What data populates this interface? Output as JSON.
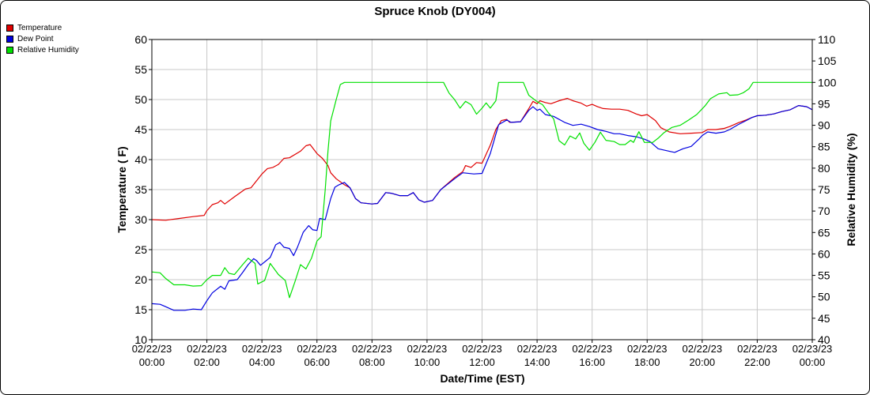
{
  "chart_data": {
    "type": "line",
    "title": "Spruce Knob (DY004)",
    "xlabel": "Date/Time (EST)",
    "ylabel_left": "Temperature ( F)",
    "ylabel_right": "Relative Humidity (%)",
    "ylim_left": [
      10,
      60
    ],
    "ylim_right": [
      40,
      110
    ],
    "left_ticks": [
      10,
      15,
      20,
      25,
      30,
      35,
      40,
      45,
      50,
      55,
      60
    ],
    "right_ticks": [
      40,
      45,
      50,
      55,
      60,
      65,
      70,
      75,
      80,
      85,
      90,
      95,
      100,
      105,
      110
    ],
    "xlim": [
      0,
      24
    ],
    "x_ticks": [
      {
        "h": 0,
        "date": "02/22/23",
        "time": "00:00"
      },
      {
        "h": 2,
        "date": "02/22/23",
        "time": "02:00"
      },
      {
        "h": 4,
        "date": "02/22/23",
        "time": "04:00"
      },
      {
        "h": 6,
        "date": "02/22/23",
        "time": "06:00"
      },
      {
        "h": 8,
        "date": "02/22/23",
        "time": "08:00"
      },
      {
        "h": 10,
        "date": "02/22/23",
        "time": "10:00"
      },
      {
        "h": 12,
        "date": "02/22/23",
        "time": "12:00"
      },
      {
        "h": 14,
        "date": "02/22/23",
        "time": "14:00"
      },
      {
        "h": 16,
        "date": "02/22/23",
        "time": "16:00"
      },
      {
        "h": 18,
        "date": "02/22/23",
        "time": "18:00"
      },
      {
        "h": 20,
        "date": "02/22/23",
        "time": "20:00"
      },
      {
        "h": 22,
        "date": "02/22/23",
        "time": "22:00"
      },
      {
        "h": 24,
        "date": "02/23/23",
        "time": "00:00"
      }
    ],
    "grid": true,
    "legend_position": "top-left",
    "series": [
      {
        "name": "Temperature",
        "axis": "left",
        "color": "#e00000",
        "points": [
          [
            0,
            30
          ],
          [
            0.5,
            29.9
          ],
          [
            1,
            30.2
          ],
          [
            1.5,
            30.5
          ],
          [
            1.9,
            30.7
          ],
          [
            2,
            31.5
          ],
          [
            2.2,
            32.5
          ],
          [
            2.4,
            32.8
          ],
          [
            2.5,
            33.2
          ],
          [
            2.65,
            32.6
          ],
          [
            3,
            33.8
          ],
          [
            3.4,
            35.1
          ],
          [
            3.6,
            35.3
          ],
          [
            4,
            37.6
          ],
          [
            4.2,
            38.5
          ],
          [
            4.4,
            38.7
          ],
          [
            4.6,
            39.2
          ],
          [
            4.8,
            40.2
          ],
          [
            5,
            40.3
          ],
          [
            5.4,
            41.4
          ],
          [
            5.6,
            42.3
          ],
          [
            5.75,
            42.5
          ],
          [
            6,
            41
          ],
          [
            6.2,
            40.2
          ],
          [
            6.4,
            39
          ],
          [
            6.5,
            37.8
          ],
          [
            6.7,
            36.8
          ],
          [
            7,
            35.8
          ],
          [
            7.2,
            35.3
          ],
          [
            7.4,
            33.5
          ],
          [
            7.6,
            32.8
          ],
          [
            8,
            32.6
          ],
          [
            8.2,
            32.7
          ],
          [
            8.5,
            34.5
          ],
          [
            8.7,
            34.4
          ],
          [
            9,
            34
          ],
          [
            9.3,
            34
          ],
          [
            9.5,
            34.5
          ],
          [
            9.7,
            33.3
          ],
          [
            9.9,
            32.9
          ],
          [
            10.2,
            33.2
          ],
          [
            10.5,
            35
          ],
          [
            11,
            37
          ],
          [
            11.3,
            38
          ],
          [
            11.4,
            39
          ],
          [
            11.6,
            38.7
          ],
          [
            11.8,
            39.5
          ],
          [
            12,
            39.4
          ],
          [
            12.3,
            42.4
          ],
          [
            12.5,
            45
          ],
          [
            12.7,
            46.5
          ],
          [
            12.9,
            46.7
          ],
          [
            13,
            46.2
          ],
          [
            13.4,
            46.3
          ],
          [
            13.7,
            48.5
          ],
          [
            13.85,
            49.7
          ],
          [
            14,
            49.3
          ],
          [
            14.1,
            49.8
          ],
          [
            14.3,
            49.5
          ],
          [
            14.5,
            49.3
          ],
          [
            14.8,
            49.8
          ],
          [
            15.1,
            50.2
          ],
          [
            15.3,
            49.8
          ],
          [
            15.6,
            49.4
          ],
          [
            15.8,
            48.9
          ],
          [
            16,
            49.2
          ],
          [
            16.2,
            48.8
          ],
          [
            16.4,
            48.5
          ],
          [
            16.7,
            48.4
          ],
          [
            17,
            48.4
          ],
          [
            17.3,
            48.2
          ],
          [
            17.6,
            47.6
          ],
          [
            17.8,
            47.3
          ],
          [
            18,
            47.5
          ],
          [
            18.3,
            46.5
          ],
          [
            18.5,
            45.3
          ],
          [
            18.8,
            44.6
          ],
          [
            19.2,
            44.3
          ],
          [
            19.6,
            44.4
          ],
          [
            20,
            44.5
          ],
          [
            20.2,
            45
          ],
          [
            20.5,
            45
          ],
          [
            20.8,
            45.2
          ],
          [
            21,
            45.5
          ],
          [
            21.3,
            46.1
          ],
          [
            21.6,
            46.6
          ],
          [
            21.8,
            47
          ],
          [
            22,
            47.3
          ],
          [
            22.3,
            47.4
          ],
          [
            22.6,
            47.6
          ],
          [
            22.9,
            48
          ],
          [
            23.2,
            48.3
          ],
          [
            23.5,
            49
          ],
          [
            23.8,
            48.8
          ],
          [
            24,
            48.3
          ]
        ]
      },
      {
        "name": "Dew Point",
        "axis": "left",
        "color": "#0000e0",
        "points": [
          [
            0,
            16
          ],
          [
            0.3,
            15.9
          ],
          [
            0.5,
            15.5
          ],
          [
            0.8,
            14.9
          ],
          [
            1.2,
            14.9
          ],
          [
            1.5,
            15.1
          ],
          [
            1.8,
            15
          ],
          [
            2,
            16.5
          ],
          [
            2.2,
            17.8
          ],
          [
            2.5,
            18.9
          ],
          [
            2.65,
            18.4
          ],
          [
            2.8,
            19.8
          ],
          [
            3.1,
            20
          ],
          [
            3.3,
            21.2
          ],
          [
            3.5,
            22.5
          ],
          [
            3.7,
            23.5
          ],
          [
            3.8,
            23.2
          ],
          [
            3.95,
            22.4
          ],
          [
            4.3,
            23.7
          ],
          [
            4.5,
            25.8
          ],
          [
            4.65,
            26.2
          ],
          [
            4.8,
            25.4
          ],
          [
            5,
            25.2
          ],
          [
            5.15,
            24
          ],
          [
            5.3,
            25.5
          ],
          [
            5.5,
            27.9
          ],
          [
            5.7,
            29
          ],
          [
            5.85,
            28.3
          ],
          [
            6,
            28.2
          ],
          [
            6.1,
            30.2
          ],
          [
            6.3,
            30
          ],
          [
            6.5,
            33.5
          ],
          [
            6.65,
            35.4
          ],
          [
            6.8,
            35.8
          ],
          [
            7,
            36.2
          ],
          [
            7.2,
            35.3
          ],
          [
            7.4,
            33.5
          ],
          [
            7.6,
            32.8
          ],
          [
            8,
            32.6
          ],
          [
            8.2,
            32.7
          ],
          [
            8.5,
            34.5
          ],
          [
            8.7,
            34.4
          ],
          [
            9,
            34
          ],
          [
            9.3,
            34
          ],
          [
            9.5,
            34.5
          ],
          [
            9.7,
            33.3
          ],
          [
            9.9,
            32.9
          ],
          [
            10.2,
            33.2
          ],
          [
            10.5,
            35
          ],
          [
            11,
            36.8
          ],
          [
            11.3,
            37.8
          ],
          [
            11.7,
            37.6
          ],
          [
            12,
            37.7
          ],
          [
            12.3,
            41
          ],
          [
            12.6,
            45.8
          ],
          [
            12.9,
            46.6
          ],
          [
            13.05,
            46.2
          ],
          [
            13.4,
            46.3
          ],
          [
            13.7,
            48.2
          ],
          [
            13.85,
            48.8
          ],
          [
            14,
            48.2
          ],
          [
            14.1,
            48.4
          ],
          [
            14.3,
            47.5
          ],
          [
            14.6,
            47.2
          ],
          [
            15,
            46.2
          ],
          [
            15.3,
            45.7
          ],
          [
            15.6,
            45.9
          ],
          [
            15.9,
            45.5
          ],
          [
            16.2,
            45
          ],
          [
            16.5,
            44.7
          ],
          [
            16.8,
            44.3
          ],
          [
            17,
            44.3
          ],
          [
            17.3,
            44
          ],
          [
            17.6,
            43.8
          ],
          [
            17.9,
            43.4
          ],
          [
            18.1,
            43
          ],
          [
            18.4,
            41.8
          ],
          [
            18.8,
            41.4
          ],
          [
            19,
            41.2
          ],
          [
            19.3,
            41.8
          ],
          [
            19.6,
            42.2
          ],
          [
            19.9,
            43.5
          ],
          [
            20,
            44
          ],
          [
            20.2,
            44.6
          ],
          [
            20.5,
            44.4
          ],
          [
            20.8,
            44.6
          ],
          [
            21,
            45
          ],
          [
            21.3,
            45.8
          ],
          [
            21.6,
            46.5
          ],
          [
            21.8,
            47
          ],
          [
            22,
            47.3
          ],
          [
            22.3,
            47.4
          ],
          [
            22.6,
            47.6
          ],
          [
            22.9,
            48
          ],
          [
            23.2,
            48.3
          ],
          [
            23.5,
            49
          ],
          [
            23.8,
            48.8
          ],
          [
            24,
            48.3
          ]
        ]
      },
      {
        "name": "Relative Humidity",
        "axis": "right",
        "color": "#00e000",
        "points": [
          [
            0,
            55.8
          ],
          [
            0.3,
            55.6
          ],
          [
            0.5,
            54.3
          ],
          [
            0.8,
            52.8
          ],
          [
            1.2,
            52.8
          ],
          [
            1.5,
            52.5
          ],
          [
            1.8,
            52.6
          ],
          [
            2,
            54
          ],
          [
            2.2,
            55
          ],
          [
            2.5,
            55
          ],
          [
            2.65,
            56.8
          ],
          [
            2.8,
            55.5
          ],
          [
            3,
            55.2
          ],
          [
            3.3,
            57.5
          ],
          [
            3.5,
            59
          ],
          [
            3.75,
            57.8
          ],
          [
            3.85,
            53
          ],
          [
            4.1,
            53.8
          ],
          [
            4.3,
            57.8
          ],
          [
            4.6,
            55.2
          ],
          [
            4.85,
            53.8
          ],
          [
            5,
            49.8
          ],
          [
            5.2,
            53.5
          ],
          [
            5.4,
            57.5
          ],
          [
            5.6,
            56.5
          ],
          [
            5.8,
            59
          ],
          [
            6,
            63
          ],
          [
            6.15,
            64
          ],
          [
            6.3,
            75
          ],
          [
            6.4,
            84
          ],
          [
            6.5,
            91
          ],
          [
            6.7,
            96
          ],
          [
            6.85,
            99.5
          ],
          [
            7,
            100
          ],
          [
            8,
            100
          ],
          [
            9,
            100
          ],
          [
            10,
            100
          ],
          [
            10.6,
            100
          ],
          [
            10.8,
            97.5
          ],
          [
            11,
            96
          ],
          [
            11.2,
            94
          ],
          [
            11.4,
            95.6
          ],
          [
            11.6,
            94.8
          ],
          [
            11.8,
            92.6
          ],
          [
            12,
            94
          ],
          [
            12.15,
            95.2
          ],
          [
            12.3,
            94
          ],
          [
            12.5,
            95.7
          ],
          [
            12.6,
            100
          ],
          [
            13,
            100
          ],
          [
            13.5,
            100
          ],
          [
            13.7,
            97
          ],
          [
            14,
            95.5
          ],
          [
            14.2,
            94.8
          ],
          [
            14.4,
            93
          ],
          [
            14.6,
            91.5
          ],
          [
            14.8,
            86.4
          ],
          [
            15,
            85.4
          ],
          [
            15.2,
            87.5
          ],
          [
            15.4,
            86.8
          ],
          [
            15.55,
            88.2
          ],
          [
            15.7,
            85.8
          ],
          [
            15.9,
            84.2
          ],
          [
            16.1,
            86
          ],
          [
            16.3,
            88.4
          ],
          [
            16.5,
            86.5
          ],
          [
            16.8,
            86.2
          ],
          [
            17,
            85.5
          ],
          [
            17.2,
            85.5
          ],
          [
            17.4,
            86.5
          ],
          [
            17.5,
            86
          ],
          [
            17.7,
            88.5
          ],
          [
            17.9,
            86
          ],
          [
            18.2,
            86
          ],
          [
            18.4,
            87
          ],
          [
            18.6,
            88.2
          ],
          [
            18.9,
            89.5
          ],
          [
            19.2,
            90
          ],
          [
            19.5,
            91.2
          ],
          [
            19.8,
            92.5
          ],
          [
            20.1,
            94.5
          ],
          [
            20.3,
            96.2
          ],
          [
            20.6,
            97.3
          ],
          [
            20.9,
            97.6
          ],
          [
            21,
            97
          ],
          [
            21.3,
            97.1
          ],
          [
            21.5,
            97.6
          ],
          [
            21.7,
            98.5
          ],
          [
            21.85,
            100
          ],
          [
            22,
            100
          ],
          [
            23,
            100
          ],
          [
            24,
            100
          ]
        ]
      }
    ]
  }
}
